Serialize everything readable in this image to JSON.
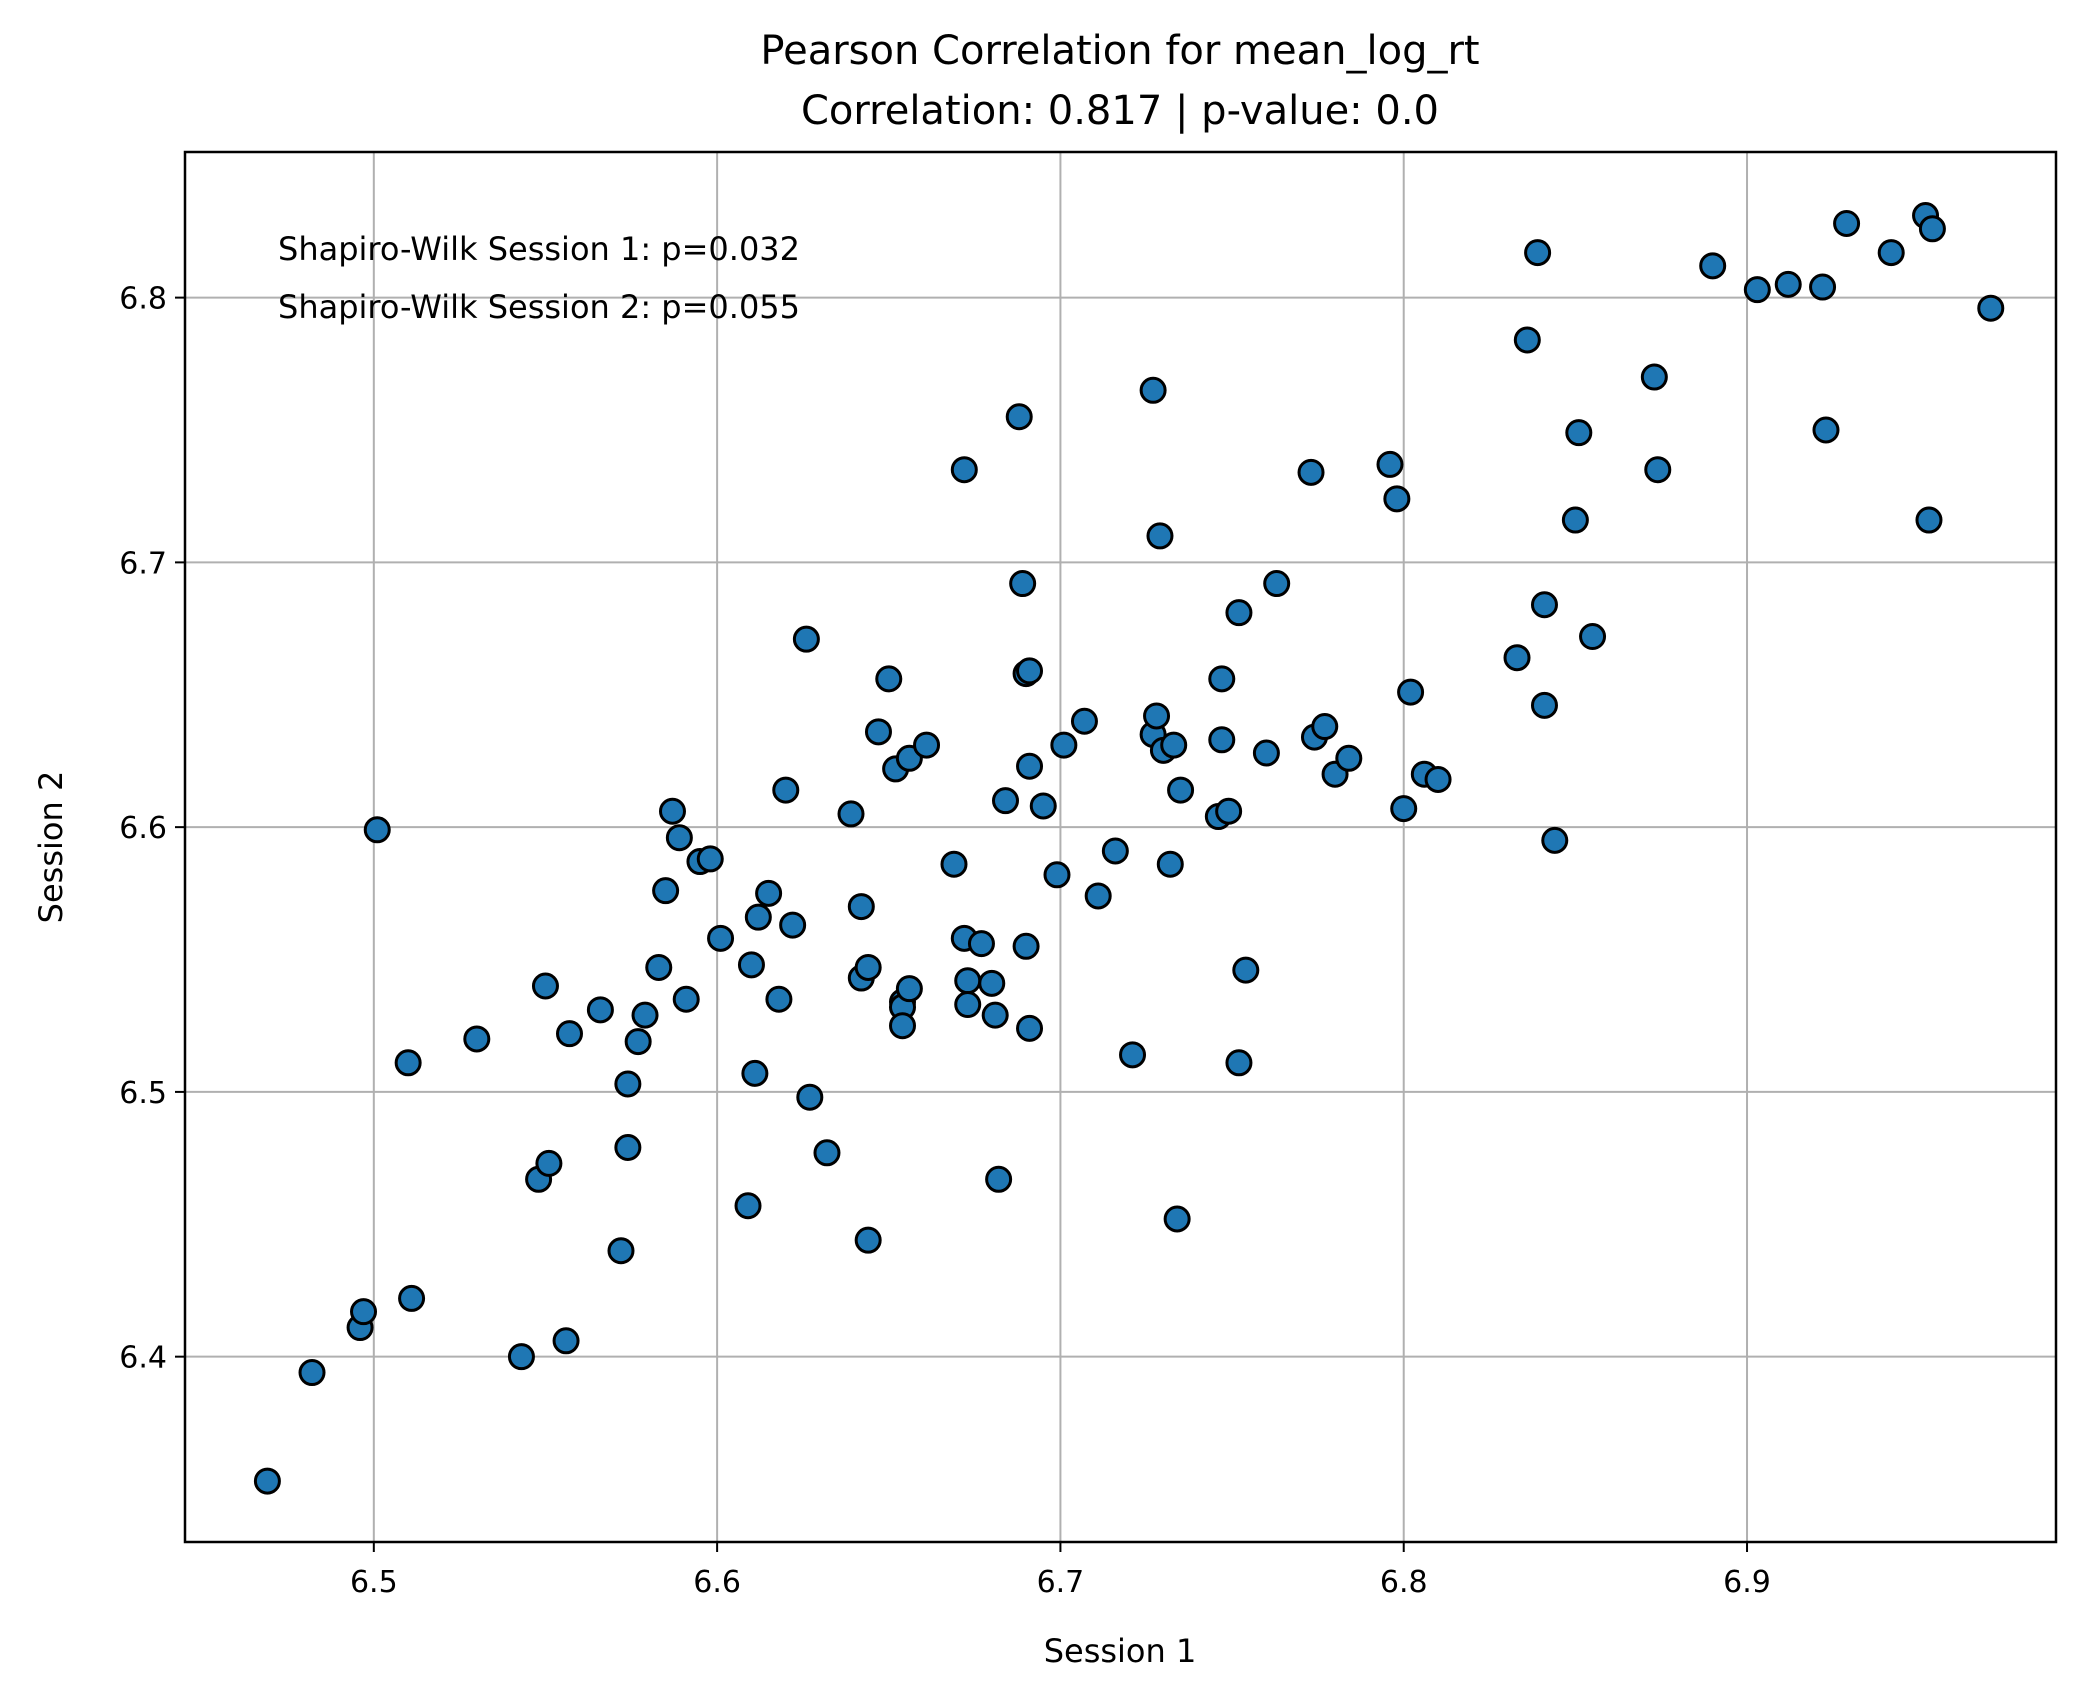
{
  "chart_data": {
    "type": "scatter",
    "title": "Pearson Correlation for mean_log_rt",
    "subtitle": "Correlation: 0.817 | p-value: 0.0",
    "xlabel": "Session 1",
    "ylabel": "Session 2",
    "xlim": [
      6.445,
      6.99
    ],
    "ylim": [
      6.33,
      6.855
    ],
    "xticks": [
      6.5,
      6.6,
      6.7,
      6.8,
      6.9
    ],
    "yticks": [
      6.4,
      6.5,
      6.6,
      6.7,
      6.8
    ],
    "xtick_labels": [
      "6.5",
      "6.6",
      "6.7",
      "6.8",
      "6.9"
    ],
    "ytick_labels": [
      "6.4",
      "6.5",
      "6.6",
      "6.7",
      "6.8"
    ],
    "grid": true,
    "annotations": [
      "Shapiro-Wilk Session 1: p=0.032",
      "Shapiro-Wilk Session 2: p=0.055"
    ],
    "marker_color": "#1f77b4",
    "marker_edge": "#000000",
    "points": [
      [
        6.469,
        6.353
      ],
      [
        6.482,
        6.394
      ],
      [
        6.496,
        6.411
      ],
      [
        6.497,
        6.417
      ],
      [
        6.501,
        6.599
      ],
      [
        6.51,
        6.511
      ],
      [
        6.511,
        6.422
      ],
      [
        6.53,
        6.52
      ],
      [
        6.543,
        6.4
      ],
      [
        6.548,
        6.467
      ],
      [
        6.55,
        6.54
      ],
      [
        6.551,
        6.473
      ],
      [
        6.556,
        6.406
      ],
      [
        6.557,
        6.522
      ],
      [
        6.566,
        6.531
      ],
      [
        6.572,
        6.44
      ],
      [
        6.574,
        6.479
      ],
      [
        6.574,
        6.503
      ],
      [
        6.577,
        6.519
      ],
      [
        6.579,
        6.529
      ],
      [
        6.583,
        6.547
      ],
      [
        6.585,
        6.576
      ],
      [
        6.587,
        6.606
      ],
      [
        6.589,
        6.596
      ],
      [
        6.591,
        6.535
      ],
      [
        6.595,
        6.587
      ],
      [
        6.598,
        6.588
      ],
      [
        6.601,
        6.558
      ],
      [
        6.609,
        6.457
      ],
      [
        6.61,
        6.548
      ],
      [
        6.611,
        6.507
      ],
      [
        6.612,
        6.566
      ],
      [
        6.615,
        6.575
      ],
      [
        6.618,
        6.535
      ],
      [
        6.62,
        6.614
      ],
      [
        6.622,
        6.563
      ],
      [
        6.626,
        6.671
      ],
      [
        6.627,
        6.498
      ],
      [
        6.632,
        6.477
      ],
      [
        6.639,
        6.605
      ],
      [
        6.642,
        6.57
      ],
      [
        6.642,
        6.543
      ],
      [
        6.644,
        6.547
      ],
      [
        6.644,
        6.444
      ],
      [
        6.647,
        6.636
      ],
      [
        6.65,
        6.656
      ],
      [
        6.652,
        6.622
      ],
      [
        6.654,
        6.534
      ],
      [
        6.654,
        6.532
      ],
      [
        6.654,
        6.525
      ],
      [
        6.656,
        6.539
      ],
      [
        6.656,
        6.626
      ],
      [
        6.661,
        6.631
      ],
      [
        6.669,
        6.586
      ],
      [
        6.672,
        6.558
      ],
      [
        6.672,
        6.735
      ],
      [
        6.673,
        6.542
      ],
      [
        6.673,
        6.533
      ],
      [
        6.677,
        6.556
      ],
      [
        6.68,
        6.541
      ],
      [
        6.681,
        6.529
      ],
      [
        6.682,
        6.467
      ],
      [
        6.684,
        6.61
      ],
      [
        6.688,
        6.755
      ],
      [
        6.689,
        6.692
      ],
      [
        6.69,
        6.658
      ],
      [
        6.69,
        6.555
      ],
      [
        6.691,
        6.659
      ],
      [
        6.691,
        6.623
      ],
      [
        6.691,
        6.524
      ],
      [
        6.695,
        6.608
      ],
      [
        6.699,
        6.582
      ],
      [
        6.701,
        6.631
      ],
      [
        6.707,
        6.64
      ],
      [
        6.711,
        6.574
      ],
      [
        6.716,
        6.591
      ],
      [
        6.721,
        6.514
      ],
      [
        6.727,
        6.635
      ],
      [
        6.727,
        6.765
      ],
      [
        6.728,
        6.642
      ],
      [
        6.729,
        6.71
      ],
      [
        6.73,
        6.629
      ],
      [
        6.732,
        6.586
      ],
      [
        6.733,
        6.631
      ],
      [
        6.734,
        6.452
      ],
      [
        6.735,
        6.614
      ],
      [
        6.746,
        6.604
      ],
      [
        6.747,
        6.633
      ],
      [
        6.747,
        6.656
      ],
      [
        6.749,
        6.606
      ],
      [
        6.752,
        6.681
      ],
      [
        6.752,
        6.511
      ],
      [
        6.754,
        6.546
      ],
      [
        6.76,
        6.628
      ],
      [
        6.763,
        6.692
      ],
      [
        6.773,
        6.734
      ],
      [
        6.774,
        6.634
      ],
      [
        6.777,
        6.638
      ],
      [
        6.78,
        6.62
      ],
      [
        6.784,
        6.626
      ],
      [
        6.796,
        6.737
      ],
      [
        6.798,
        6.724
      ],
      [
        6.8,
        6.607
      ],
      [
        6.802,
        6.651
      ],
      [
        6.806,
        6.62
      ],
      [
        6.81,
        6.618
      ],
      [
        6.833,
        6.664
      ],
      [
        6.836,
        6.784
      ],
      [
        6.839,
        6.817
      ],
      [
        6.841,
        6.684
      ],
      [
        6.841,
        6.646
      ],
      [
        6.844,
        6.595
      ],
      [
        6.85,
        6.716
      ],
      [
        6.851,
        6.749
      ],
      [
        6.855,
        6.672
      ],
      [
        6.873,
        6.77
      ],
      [
        6.874,
        6.735
      ],
      [
        6.89,
        6.812
      ],
      [
        6.903,
        6.803
      ],
      [
        6.912,
        6.805
      ],
      [
        6.922,
        6.804
      ],
      [
        6.923,
        6.75
      ],
      [
        6.929,
        6.828
      ],
      [
        6.942,
        6.817
      ],
      [
        6.952,
        6.831
      ],
      [
        6.954,
        6.826
      ],
      [
        6.953,
        6.716
      ],
      [
        6.971,
        6.796
      ]
    ]
  }
}
